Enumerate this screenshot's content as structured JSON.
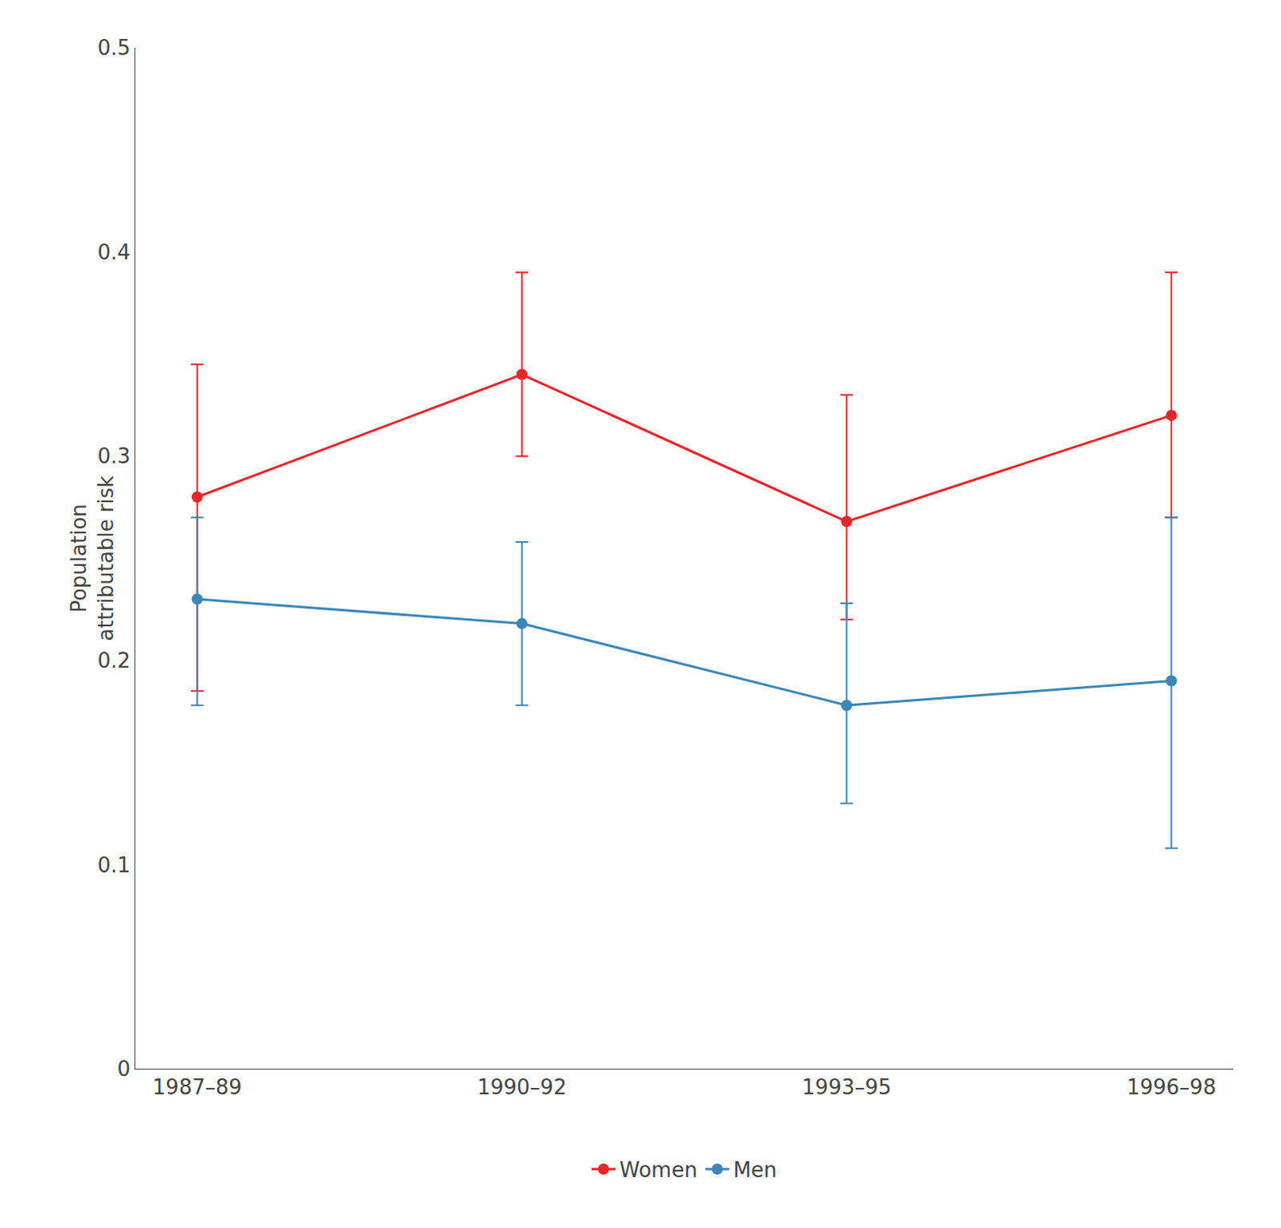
{
  "chart_data": {
    "type": "line",
    "categories": [
      "1987–89",
      "1990–92",
      "1993–95",
      "1996–98"
    ],
    "series": [
      {
        "name": "Women",
        "color": "#E8252A",
        "marker": "circle",
        "line_style": "solid",
        "values": [
          0.28,
          0.34,
          0.268,
          0.32
        ],
        "ci_low": [
          0.185,
          0.3,
          0.22,
          0.27
        ],
        "ci_high": [
          0.345,
          0.39,
          0.33,
          0.39
        ]
      },
      {
        "name": "Men",
        "color": "#3B87B8",
        "marker": "circle",
        "line_style": "solid",
        "values": [
          0.23,
          0.218,
          0.178,
          0.19
        ],
        "ci_low": [
          0.178,
          0.178,
          0.13,
          0.108
        ],
        "ci_high": [
          0.27,
          0.258,
          0.228,
          0.27
        ]
      }
    ],
    "ylabel": "Population\nattributable risk",
    "ylim": [
      0,
      0.5
    ],
    "yticks": [
      0,
      0.1,
      0.2,
      0.3,
      0.4,
      0.5
    ],
    "grid": false,
    "legend": "bottom"
  }
}
